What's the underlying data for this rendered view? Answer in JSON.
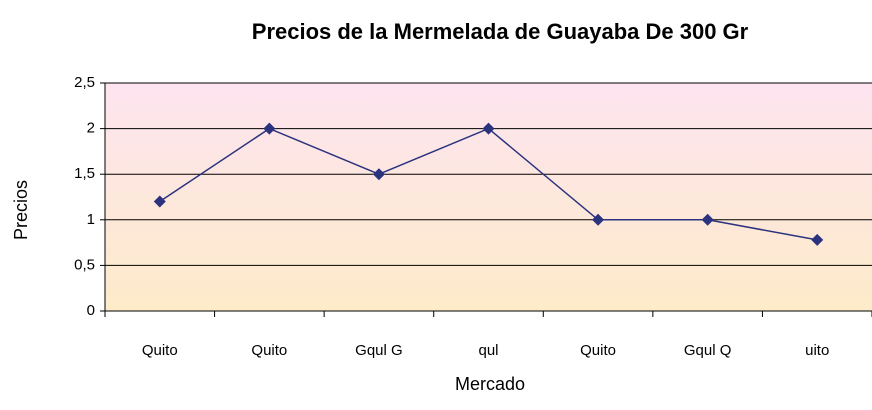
{
  "chart_data": {
    "type": "line",
    "title": "Precios de la Mermelada de Guayaba De 300 Gr",
    "x_label": "Mercado",
    "y_label": "Precios",
    "categories": [
      "Quito",
      "Quito",
      "Gqul G",
      "qul",
      "Quito",
      "Gqul Q",
      "uito"
    ],
    "values": [
      1.2,
      2,
      1.5,
      2,
      1,
      1,
      0.78
    ],
    "color": "#2b337f",
    "ylim": [
      0,
      2.5
    ],
    "yticks": [
      0,
      {
        "value": 0.5,
        "label": "0,5"
      },
      1,
      {
        "value": 1.5,
        "label": "1,5"
      },
      2,
      {
        "value": 2.5,
        "label": "2,5"
      }
    ],
    "grid": true
  }
}
